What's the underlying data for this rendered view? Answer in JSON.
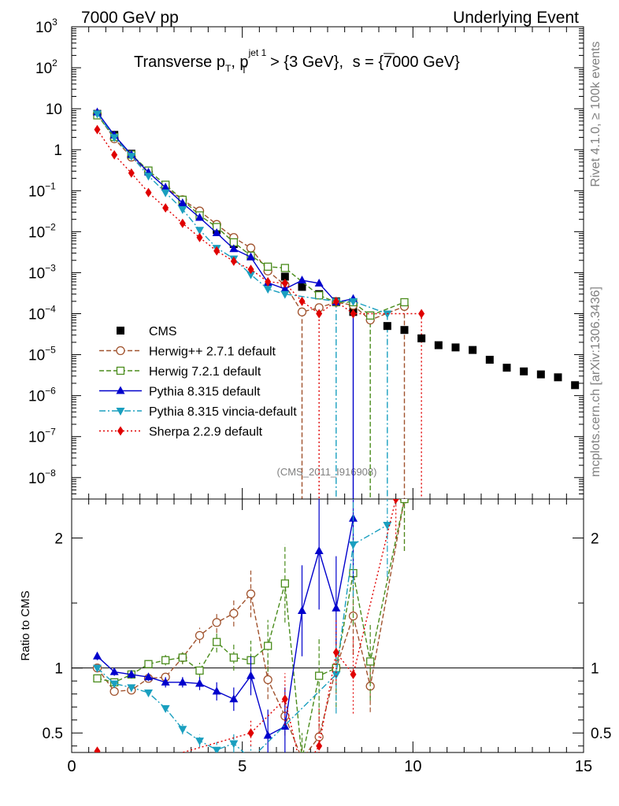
{
  "header": {
    "left": "7000 GeV pp",
    "right": "Underlying Event",
    "side_top": "Rivet 4.1.0, ≥ 100k events",
    "side_bottom": "mcplots.cern.ch [arXiv:1306.3436]",
    "analysis_id": "(CMS_2011_I916908)"
  },
  "chart_data": [
    {
      "type": "scatter",
      "panel": "main",
      "title": "Transverse pT, pT jet 1 > {3 GeV}, √s = {7000 GeV}",
      "title_parts": {
        "a": "Transverse p",
        "b": "T",
        "c": ", p",
        "d": "jet 1",
        "e": "T",
        "f": " > {3 GeV}, ",
        "g": "s",
        "h": " = {7000 GeV}"
      },
      "xlim": [
        0,
        15
      ],
      "ylim": [
        3e-09,
        1000
      ],
      "yscale": "log",
      "x_ticks": [
        0,
        5,
        10,
        15
      ],
      "y_tick_labels": [
        {
          "v": 1000,
          "m": "10",
          "e": "3"
        },
        {
          "v": 100,
          "m": "10",
          "e": "2"
        },
        {
          "v": 10,
          "m": "10",
          "e": ""
        },
        {
          "v": 1,
          "m": "1",
          "e": ""
        },
        {
          "v": 0.1,
          "m": "10",
          "e": "−1"
        },
        {
          "v": 0.01,
          "m": "10",
          "e": "−2"
        },
        {
          "v": 0.001,
          "m": "10",
          "e": "−3"
        },
        {
          "v": 0.0001,
          "m": "10",
          "e": "−4"
        },
        {
          "v": 1e-05,
          "m": "10",
          "e": "−5"
        },
        {
          "v": 1e-06,
          "m": "10",
          "e": "−6"
        },
        {
          "v": 1e-07,
          "m": "10",
          "e": "−7"
        },
        {
          "v": 1e-08,
          "m": "10",
          "e": "−8"
        }
      ],
      "series": [
        {
          "name": "CMS",
          "label": "CMS",
          "color": "#000000",
          "marker": "square",
          "dash": "",
          "line": false,
          "x": [
            0.75,
            1.25,
            1.75,
            2.25,
            2.75,
            3.25,
            3.75,
            4.25,
            4.75,
            5.25,
            5.75,
            6.25,
            6.75,
            7.25,
            7.75,
            8.25,
            8.75,
            9.25,
            9.75,
            10.25,
            10.75,
            11.25,
            11.75,
            12.25,
            12.75,
            13.25,
            13.75,
            14.25,
            14.75
          ],
          "y": [
            7.5,
            2.3,
            0.8,
            0.3,
            0.13,
            0.055,
            0.025,
            0.011,
            0.005,
            0.0025,
            0.0012,
            0.0008,
            0.00045,
            0.0003,
            0.0002,
            0.00011,
            9e-05,
            5e-05,
            4e-05,
            2.5e-05,
            1.7e-05,
            1.5e-05,
            1.3e-05,
            7.5e-06,
            4.8e-06,
            3.9e-06,
            3.3e-06,
            2.8e-06,
            1.8e-06
          ]
        },
        {
          "name": "Herwig++ 2.7.1 default",
          "label": "Herwig++ 2.7.1 default",
          "color": "#a0522d",
          "marker": "circle",
          "dash": "6,3",
          "line": true,
          "x": [
            0.75,
            1.25,
            1.75,
            2.25,
            2.75,
            3.25,
            3.75,
            4.25,
            4.75,
            5.25,
            5.75,
            6.25,
            6.75,
            7.25,
            7.75,
            8.25,
            8.75,
            9.75
          ],
          "y": [
            7.4,
            1.85,
            0.66,
            0.28,
            0.12,
            0.06,
            0.032,
            0.015,
            0.0072,
            0.004,
            0.0011,
            0.0005,
            0.00011,
            0.00014,
            0.00019,
            0.00016,
            7e-05,
            0.00015
          ]
        },
        {
          "name": "Herwig 7.2.1 default",
          "label": "Herwig 7.2.1 default",
          "color": "#4a8c1c",
          "marker": "square-open",
          "dash": "6,3",
          "line": true,
          "x": [
            0.75,
            1.25,
            1.75,
            2.25,
            2.75,
            3.25,
            3.75,
            4.25,
            4.75,
            5.25,
            5.75,
            6.25,
            7.25,
            7.75,
            8.25,
            8.75,
            9.75
          ],
          "y": [
            6.9,
            2.05,
            0.76,
            0.31,
            0.14,
            0.06,
            0.025,
            0.013,
            0.0055,
            0.0026,
            0.0014,
            0.0013,
            0.00028,
            0.00019,
            0.00019,
            9e-05,
            0.00019
          ]
        },
        {
          "name": "Pythia 8.315 default",
          "label": "Pythia 8.315 default",
          "color": "#0000cc",
          "marker": "triangle-up",
          "dash": "",
          "line": true,
          "x": [
            0.75,
            1.25,
            1.75,
            2.25,
            2.75,
            3.25,
            3.75,
            4.25,
            4.75,
            5.25,
            5.75,
            6.25,
            6.75,
            7.25,
            7.75,
            8.25
          ],
          "y": [
            8.2,
            2.25,
            0.76,
            0.28,
            0.12,
            0.05,
            0.022,
            0.0093,
            0.0038,
            0.0024,
            0.00057,
            0.0004,
            0.00065,
            0.00055,
            0.00019,
            0.00023
          ]
        },
        {
          "name": "Pythia 8.315 vincia-default",
          "label": "Pythia 8.315 vincia-default",
          "color": "#1a9fbf",
          "marker": "triangle-down",
          "dash": "8,3,2,3",
          "line": true,
          "x": [
            0.75,
            1.25,
            1.75,
            2.25,
            2.75,
            3.25,
            3.75,
            4.25,
            4.75,
            5.25,
            5.75,
            6.25,
            7.75,
            8.25,
            9.25
          ],
          "y": [
            7.6,
            2.0,
            0.7,
            0.23,
            0.09,
            0.035,
            0.011,
            0.004,
            0.0022,
            0.0009,
            0.0004,
            0.0003,
            0.0002,
            0.0002,
            0.0001
          ]
        },
        {
          "name": "Sherpa 2.2.9 default",
          "label": "Sherpa 2.2.9 default",
          "color": "#e00000",
          "marker": "diamond",
          "dash": "2,3",
          "line": true,
          "x": [
            0.75,
            1.25,
            1.75,
            2.25,
            2.75,
            3.25,
            3.75,
            4.25,
            4.75,
            5.25,
            5.75,
            6.25,
            6.75,
            7.25,
            7.75,
            8.25,
            10.25
          ],
          "y": [
            3.1,
            0.75,
            0.27,
            0.09,
            0.038,
            0.016,
            0.0072,
            0.0034,
            0.0019,
            0.0012,
            0.0006,
            0.00055,
            0.0002,
            0.0001,
            0.0002,
            0.0001,
            0.0001
          ]
        }
      ],
      "drop_lines": [
        {
          "x": 6.75,
          "from": 0.00011,
          "color": "#a0522d",
          "dash": "6,3"
        },
        {
          "x": 7.25,
          "from": 0.00014,
          "color": "#e00000",
          "dash": "2,3"
        },
        {
          "x": 7.75,
          "from": 0.0002,
          "color": "#1a9fbf",
          "dash": "8,3,2,3"
        },
        {
          "x": 8.25,
          "from": 0.0001,
          "color": "#0000cc",
          "dash": ""
        },
        {
          "x": 8.75,
          "from": 9e-05,
          "color": "#4a8c1c",
          "dash": "6,3"
        },
        {
          "x": 9.25,
          "from": 0.0001,
          "color": "#1a9fbf",
          "dash": "8,3,2,3"
        },
        {
          "x": 9.75,
          "from": 0.00015,
          "color": "#a0522d",
          "dash": "6,3"
        },
        {
          "x": 10.25,
          "from": 0.0001,
          "color": "#e00000",
          "dash": "2,3"
        }
      ]
    },
    {
      "type": "line",
      "panel": "ratio",
      "ylabel": "Ratio to CMS",
      "xlim": [
        0,
        15
      ],
      "ylim": [
        0.35,
        2.3
      ],
      "reference": 1,
      "x_ticks": [
        0,
        5,
        10,
        15
      ],
      "y_ticks": [
        0.5,
        1,
        2
      ],
      "y_tick_labels": [
        "0.5",
        "1",
        "2"
      ],
      "series": [
        {
          "name": "Herwig++ 2.7.1 default",
          "color": "#a0522d",
          "marker": "circle",
          "dash": "6,3",
          "x": [
            0.75,
            1.25,
            1.75,
            2.25,
            2.75,
            3.25,
            3.75,
            4.25,
            4.75,
            5.25,
            5.75,
            6.25,
            6.75,
            7.25,
            7.75,
            8.25,
            8.75,
            9.75
          ],
          "y": [
            1.0,
            0.82,
            0.83,
            0.92,
            0.93,
            1.08,
            1.25,
            1.35,
            1.42,
            1.57,
            0.91,
            0.63,
            0.3,
            0.47,
            1.0,
            1.4,
            0.86,
            2.3
          ],
          "err": [
            0.03,
            0.02,
            0.02,
            0.03,
            0.03,
            0.05,
            0.06,
            0.08,
            0.1,
            0.18,
            0.15,
            0.15,
            0.1,
            0.15,
            0.2,
            0.3,
            0.2,
            0.4
          ]
        },
        {
          "name": "Herwig 7.2.1 default",
          "color": "#4a8c1c",
          "marker": "square-open",
          "dash": "6,3",
          "x": [
            0.75,
            1.25,
            1.75,
            2.25,
            2.75,
            3.25,
            3.75,
            4.25,
            4.75,
            5.25,
            5.75,
            6.25,
            6.75,
            7.25,
            7.75,
            8.25,
            8.75,
            9.75
          ],
          "y": [
            0.92,
            0.89,
            0.95,
            1.03,
            1.06,
            1.08,
            0.98,
            1.2,
            1.08,
            1.06,
            1.17,
            1.65,
            0.3,
            0.94,
            1.0,
            1.73,
            1.05,
            2.3
          ],
          "err": [
            0.03,
            0.03,
            0.03,
            0.03,
            0.04,
            0.05,
            0.06,
            0.08,
            0.1,
            0.15,
            0.2,
            0.3,
            0.2,
            0.3,
            0.3,
            0.4,
            0.3,
            0.4
          ]
        },
        {
          "name": "Pythia 8.315 default",
          "color": "#0000cc",
          "marker": "triangle-up",
          "dash": "",
          "x": [
            0.75,
            1.25,
            1.75,
            2.25,
            2.75,
            3.25,
            3.75,
            4.25,
            4.75,
            5.25,
            5.75,
            6.25,
            6.75,
            7.25,
            7.75,
            8.25
          ],
          "y": [
            1.09,
            0.97,
            0.95,
            0.93,
            0.89,
            0.89,
            0.88,
            0.82,
            0.76,
            0.94,
            0.48,
            0.55,
            1.44,
            1.9,
            1.46,
            2.15
          ],
          "err": [
            0.03,
            0.03,
            0.03,
            0.03,
            0.04,
            0.04,
            0.05,
            0.07,
            0.09,
            0.15,
            0.2,
            0.3,
            0.35,
            0.45,
            0.4,
            0.5
          ]
        },
        {
          "name": "Pythia 8.315 vincia-default",
          "color": "#1a9fbf",
          "marker": "triangle-down",
          "dash": "8,3,2,3",
          "x": [
            0.75,
            1.25,
            1.75,
            2.25,
            2.75,
            3.25,
            3.75,
            4.25,
            4.75,
            5.25,
            7.75,
            8.25,
            9.25
          ],
          "y": [
            1.0,
            0.88,
            0.85,
            0.81,
            0.69,
            0.53,
            0.44,
            0.37,
            0.42,
            0.3,
            0.95,
            1.95,
            2.1
          ],
          "err": [
            0.03,
            0.03,
            0.03,
            0.03,
            0.03,
            0.04,
            0.05,
            0.06,
            0.07,
            0.1,
            0.3,
            0.4,
            0.4
          ]
        },
        {
          "name": "Sherpa 2.2.9 default",
          "color": "#e00000",
          "marker": "diamond",
          "dash": "2,3",
          "x": [
            0.75,
            1.25,
            5.25,
            6.25,
            6.75,
            7.25,
            7.75,
            8.25,
            9.5
          ],
          "y": [
            0.36,
            0.2,
            0.5,
            0.76,
            0.2,
            0.4,
            1.12,
            0.95,
            2.3
          ],
          "err": [
            0.02,
            0.02,
            0.1,
            0.2,
            0.1,
            0.3,
            0.25,
            0.3,
            0.3
          ]
        }
      ]
    }
  ]
}
